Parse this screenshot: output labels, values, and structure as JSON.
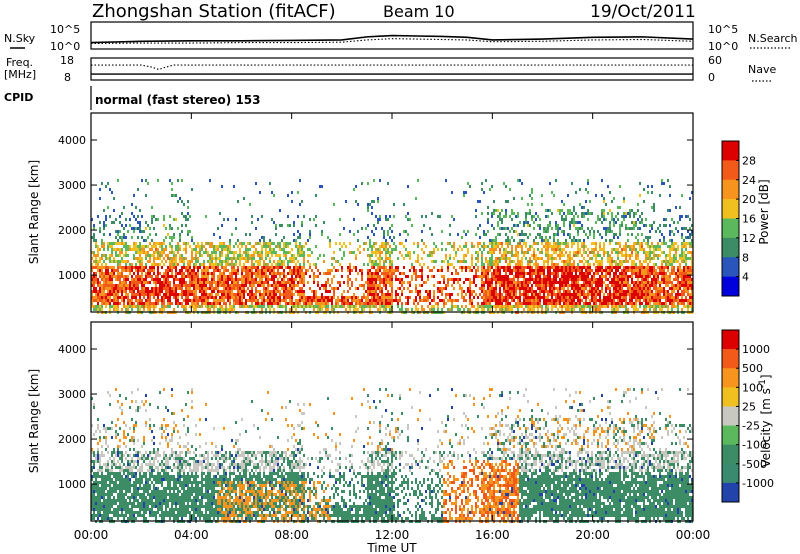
{
  "header": {
    "station": "Zhongshan Station (fitACF)",
    "beam": "Beam 10",
    "date": "19/Oct/2011"
  },
  "chart_data": [
    {
      "type": "line",
      "name": "sky-search-panel",
      "left_labels": [
        "N.Sky"
      ],
      "right_labels": [
        "N.Search"
      ],
      "left_ticks": [
        "10^5",
        "10^0"
      ],
      "right_ticks": [
        "10^5",
        "10^0"
      ],
      "series": [
        {
          "name": "N.Sky",
          "style": "solid",
          "x_hours": [
            0,
            2,
            4,
            6,
            8,
            10,
            11,
            12,
            13,
            14,
            15,
            16,
            18,
            20,
            22,
            24
          ],
          "values_log10": [
            1.0,
            1.3,
            1.4,
            1.4,
            1.5,
            1.6,
            2.3,
            2.6,
            2.5,
            2.4,
            2.2,
            1.6,
            1.8,
            2.2,
            2.3,
            1.8
          ]
        },
        {
          "name": "N.Search",
          "style": "dotted",
          "x_hours": [
            0,
            2,
            4,
            6,
            8,
            10,
            11,
            12,
            13,
            14,
            15,
            16,
            18,
            20,
            22,
            24
          ],
          "values_log10": [
            0.8,
            0.9,
            0.9,
            1.0,
            1.0,
            1.1,
            1.6,
            1.9,
            1.8,
            1.7,
            1.6,
            1.2,
            1.3,
            1.6,
            1.7,
            1.3
          ]
        }
      ]
    },
    {
      "type": "line",
      "name": "freq-nave-panel",
      "left_labels": [
        "Freq.",
        "[MHz]"
      ],
      "right_labels": [
        "Nave"
      ],
      "left_ticks": [
        "18",
        "8"
      ],
      "right_ticks": [
        "60",
        "0"
      ],
      "series": [
        {
          "name": "Freq",
          "style": "solid",
          "x_hours": [
            0,
            24
          ],
          "values": [
            10.6,
            10.6
          ]
        },
        {
          "name": "Nave",
          "style": "dotted",
          "x_hours": [
            0,
            2,
            2.4,
            2.7,
            3.0,
            3.3,
            4,
            24
          ],
          "values": [
            44,
            44,
            38,
            30,
            38,
            44,
            44,
            44
          ]
        }
      ]
    },
    {
      "type": "table",
      "name": "cpid-panel",
      "label": "CPID",
      "value": "normal (fast stereo) 153"
    },
    {
      "type": "heatmap",
      "name": "power-panel",
      "ylabel": "Slant Range [km]",
      "yticks": [
        "1000",
        "2000",
        "3000",
        "4000"
      ],
      "ylim": [
        180,
        4600
      ],
      "colorbar": {
        "label": "Power [dB]",
        "ticks": [
          "28",
          "24",
          "20",
          "16",
          "12",
          "8",
          "4"
        ],
        "colors": [
          "#0000dd",
          "#2a55bb",
          "#3c8c66",
          "#5cb85c",
          "#f0c020",
          "#f7941d",
          "#f25a1a",
          "#dd0000"
        ],
        "range": [
          0,
          32
        ]
      }
    },
    {
      "type": "heatmap",
      "name": "velocity-panel",
      "ylabel": "Slant Range [km]",
      "yticks": [
        "1000",
        "2000",
        "3000",
        "4000"
      ],
      "ylim": [
        180,
        4600
      ],
      "xlabel": "Time UT",
      "xticks": [
        "00:00",
        "04:00",
        "08:00",
        "12:00",
        "16:00",
        "20:00",
        "00:00"
      ],
      "colorbar": {
        "label": "Velocity",
        "label_units": "[m s",
        "label_exp": "-1",
        "label_close": "]",
        "ticks": [
          "1000",
          "500",
          "100",
          "25",
          "-25",
          "-100",
          "-500",
          "-1000"
        ],
        "colors": [
          "#2244aa",
          "#3a8a70",
          "#3c8c66",
          "#5cb85c",
          "#c8c8c0",
          "#f0c020",
          "#f7941d",
          "#f25a1a",
          "#dd0000"
        ]
      }
    }
  ]
}
